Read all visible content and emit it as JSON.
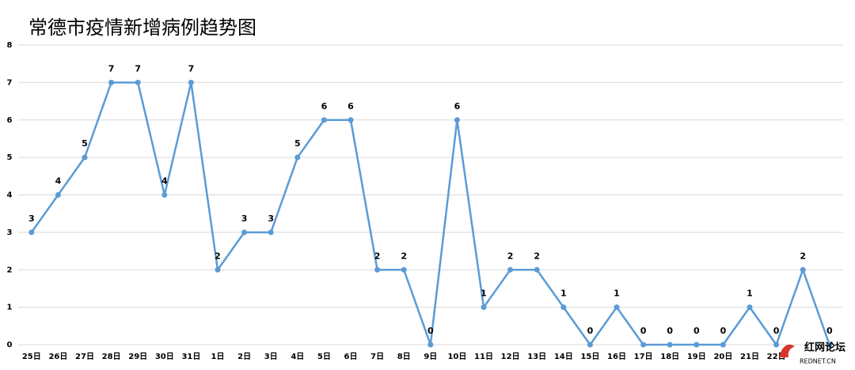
{
  "chart_data": {
    "type": "line",
    "title": "常德市疫情新增病例趋势图",
    "categories": [
      "25日",
      "26日",
      "27日",
      "28日",
      "29日",
      "30日",
      "31日",
      "1日",
      "2日",
      "3日",
      "4日",
      "5日",
      "6日",
      "7日",
      "8日",
      "9日",
      "10日",
      "11日",
      "12日",
      "13日",
      "14日",
      "15日",
      "16日",
      "17日",
      "18日",
      "19日",
      "20日",
      "21日",
      "22日",
      null,
      null
    ],
    "series": [
      {
        "name": null,
        "color": "#5b9bd5",
        "values": [
          3,
          4,
          5,
          7,
          7,
          4,
          7,
          2,
          3,
          3,
          5,
          6,
          6,
          2,
          2,
          0,
          6,
          1,
          2,
          2,
          1,
          0,
          1,
          0,
          0,
          0,
          0,
          1,
          0,
          2,
          0
        ]
      }
    ],
    "ylim": [
      0,
      8
    ],
    "yticks": [
      0,
      1,
      2,
      3,
      4,
      5,
      6,
      7,
      8
    ],
    "grid": true
  },
  "watermark": {
    "title": "红网论坛",
    "subtitle": "REDNET.CN"
  }
}
